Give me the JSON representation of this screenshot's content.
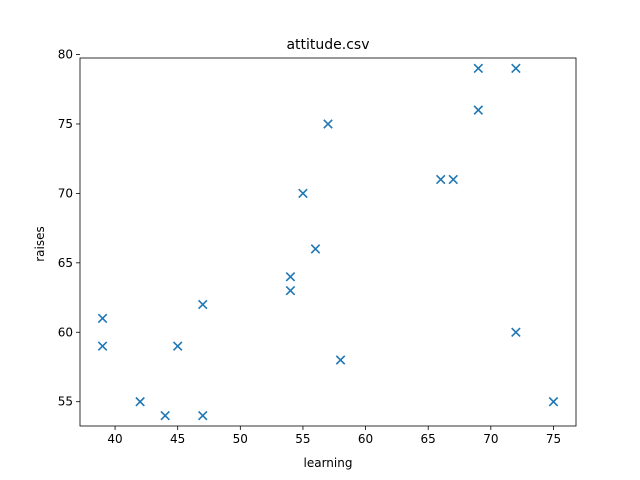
{
  "chart_data": {
    "type": "scatter",
    "title": "attitude.csv",
    "xlabel": "learning",
    "ylabel": "raises",
    "xlim": [
      37.2,
      76.8
    ],
    "ylim": [
      53.25,
      79.75
    ],
    "xticks": [
      40,
      45,
      50,
      55,
      60,
      65,
      70,
      75
    ],
    "yticks": [
      55,
      60,
      65,
      70,
      75,
      80
    ],
    "grid": false,
    "marker": "x",
    "color": "#1f77b4",
    "series": [
      {
        "points": [
          {
            "x": 39,
            "y": 61
          },
          {
            "x": 39,
            "y": 59
          },
          {
            "x": 42,
            "y": 55
          },
          {
            "x": 44,
            "y": 54
          },
          {
            "x": 45,
            "y": 59
          },
          {
            "x": 47,
            "y": 62
          },
          {
            "x": 47,
            "y": 54
          },
          {
            "x": 54,
            "y": 64
          },
          {
            "x": 54,
            "y": 63
          },
          {
            "x": 55,
            "y": 70
          },
          {
            "x": 56,
            "y": 66
          },
          {
            "x": 57,
            "y": 75
          },
          {
            "x": 58,
            "y": 58
          },
          {
            "x": 66,
            "y": 71
          },
          {
            "x": 67,
            "y": 71
          },
          {
            "x": 69,
            "y": 79
          },
          {
            "x": 69,
            "y": 76
          },
          {
            "x": 72,
            "y": 79
          },
          {
            "x": 72,
            "y": 60
          },
          {
            "x": 75,
            "y": 55
          }
        ]
      }
    ]
  }
}
